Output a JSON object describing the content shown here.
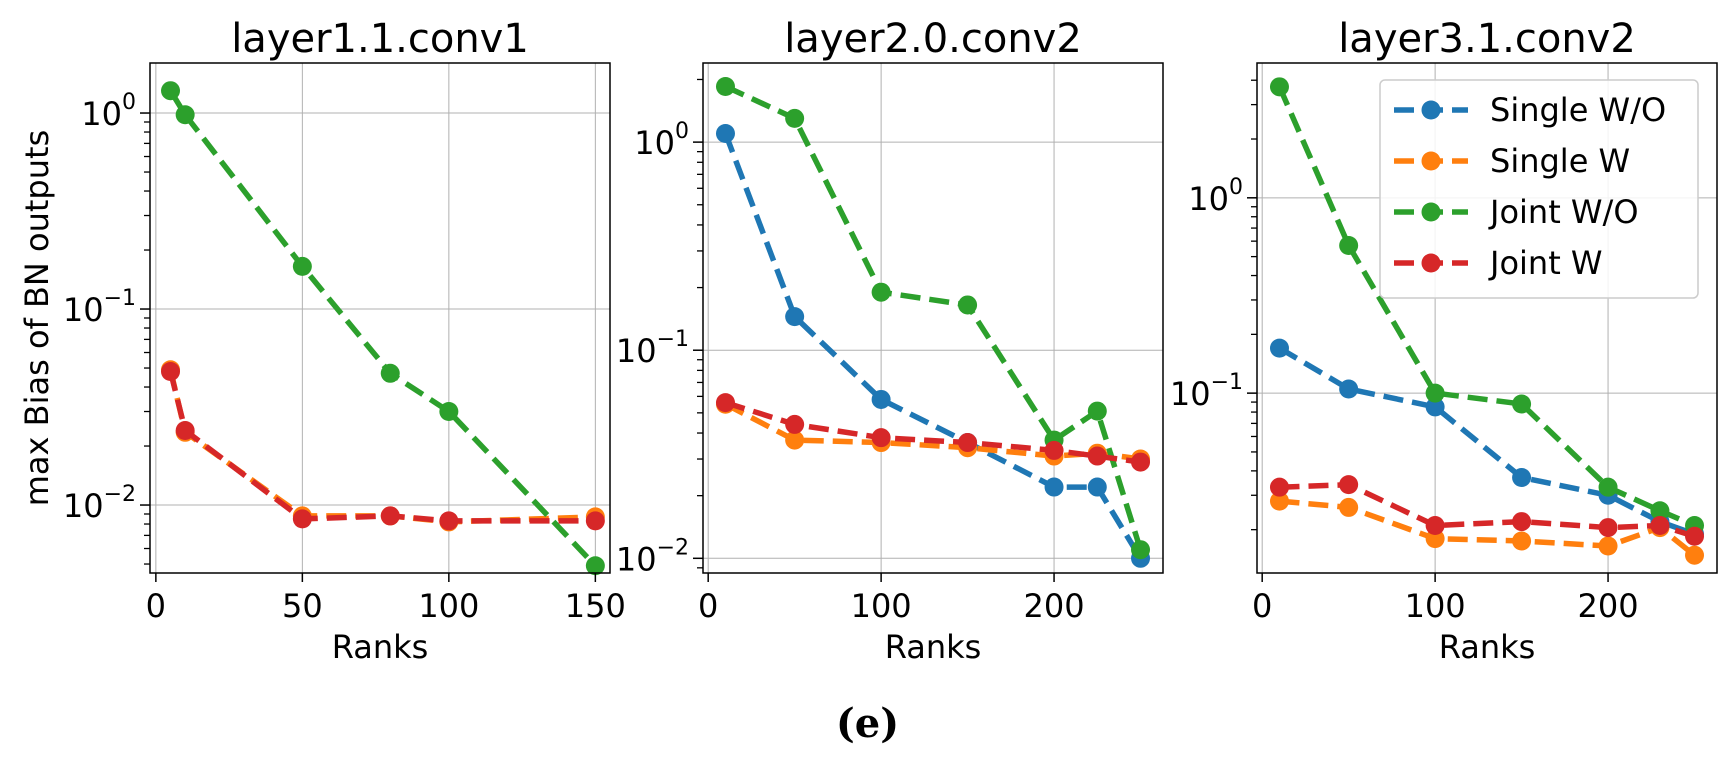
{
  "caption": "(e)",
  "colors": {
    "Single W/O": "#1f77b4",
    "Single W": "#ff7f0e",
    "Joint W/O": "#2ca02c",
    "Joint W": "#d62728"
  },
  "chart_data": [
    {
      "type": "line",
      "title": "layer1.1.conv1",
      "xlabel": "Ranks",
      "ylabel": "max Bias of BN outputs",
      "yscale": "log",
      "xlim": [
        -2,
        155
      ],
      "ylim": [
        0.0045,
        1.8
      ],
      "xticks": [
        0,
        50,
        100,
        150
      ],
      "yticks": [
        0.01,
        0.1,
        1
      ],
      "ytick_labels": [
        [
          "10",
          "−2"
        ],
        [
          "10",
          "−1"
        ],
        [
          "10",
          "0"
        ]
      ],
      "series": [
        {
          "name": "Single W/O",
          "x": [],
          "y": []
        },
        {
          "name": "Single W",
          "x": [
            5,
            10,
            50,
            80,
            100,
            150
          ],
          "y": [
            0.049,
            0.0235,
            0.0088,
            0.0088,
            0.0082,
            0.0087
          ]
        },
        {
          "name": "Joint W/O",
          "x": [
            5,
            10,
            50,
            80,
            100,
            150
          ],
          "y": [
            1.3,
            0.98,
            0.165,
            0.047,
            0.03,
            0.0049
          ]
        },
        {
          "name": "Joint W",
          "x": [
            5,
            10,
            50,
            80,
            100,
            150
          ],
          "y": [
            0.048,
            0.024,
            0.0085,
            0.0088,
            0.0083,
            0.0083
          ]
        }
      ]
    },
    {
      "type": "line",
      "title": "layer2.0.conv2",
      "xlabel": "Ranks",
      "ylabel": "",
      "yscale": "log",
      "xlim": [
        -3,
        263
      ],
      "ylim": [
        0.0085,
        2.4
      ],
      "xticks": [
        0,
        100,
        200
      ],
      "yticks": [
        0.01,
        0.1,
        1
      ],
      "ytick_labels": [
        [
          "10",
          "−2"
        ],
        [
          "10",
          "−1"
        ],
        [
          "10",
          "0"
        ]
      ],
      "series": [
        {
          "name": "Single W/O",
          "x": [
            10,
            50,
            100,
            150,
            200,
            225,
            250
          ],
          "y": [
            1.1,
            0.145,
            0.058,
            0.036,
            0.022,
            0.022,
            0.01
          ]
        },
        {
          "name": "Single W",
          "x": [
            10,
            50,
            100,
            150,
            200,
            225,
            250
          ],
          "y": [
            0.055,
            0.037,
            0.036,
            0.034,
            0.031,
            0.032,
            0.03
          ]
        },
        {
          "name": "Joint W/O",
          "x": [
            10,
            50,
            100,
            150,
            200,
            225,
            250
          ],
          "y": [
            1.85,
            1.3,
            0.19,
            0.165,
            0.037,
            0.051,
            0.011
          ]
        },
        {
          "name": "Joint W",
          "x": [
            10,
            50,
            100,
            150,
            200,
            225,
            250
          ],
          "y": [
            0.056,
            0.044,
            0.038,
            0.036,
            0.033,
            0.031,
            0.029
          ]
        }
      ]
    },
    {
      "type": "line",
      "title": "layer3.1.conv2",
      "xlabel": "Ranks",
      "ylabel": "",
      "yscale": "log",
      "xlim": [
        -3,
        263
      ],
      "ylim": [
        0.012,
        4.9
      ],
      "xticks": [
        0,
        100,
        200
      ],
      "yticks": [
        0.1,
        1
      ],
      "ytick_labels": [
        [
          "10",
          "−1"
        ],
        [
          "10",
          "0"
        ]
      ],
      "legend": "top-right",
      "series": [
        {
          "name": "Single W/O",
          "x": [
            10,
            50,
            100,
            150,
            200,
            230,
            250
          ],
          "y": [
            0.17,
            0.105,
            0.085,
            0.037,
            0.03,
            0.022,
            0.019
          ]
        },
        {
          "name": "Single W",
          "x": [
            10,
            50,
            100,
            150,
            200,
            230,
            250
          ],
          "y": [
            0.028,
            0.026,
            0.018,
            0.0175,
            0.0165,
            0.0205,
            0.0148
          ]
        },
        {
          "name": "Joint W/O",
          "x": [
            10,
            50,
            100,
            150,
            200,
            230,
            250
          ],
          "y": [
            3.7,
            0.57,
            0.1,
            0.088,
            0.033,
            0.025,
            0.021
          ]
        },
        {
          "name": "Joint W",
          "x": [
            10,
            50,
            100,
            150,
            200,
            230,
            250
          ],
          "y": [
            0.033,
            0.034,
            0.021,
            0.022,
            0.0205,
            0.021,
            0.0185
          ]
        }
      ]
    }
  ]
}
